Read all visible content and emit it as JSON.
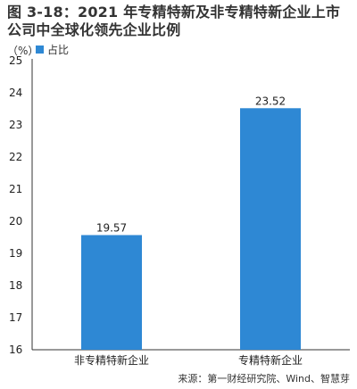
{
  "figure": {
    "title": "图 3-18：2021 年专精特新及非专精特新企业上市公司中全球化领先企业比例",
    "unit": "（%）",
    "source": "来源：第一财经研究院、Wind、智慧芽"
  },
  "colors": {
    "bar": "#2E88D4",
    "axis": "#333333",
    "text": "#222222"
  },
  "chart_data": {
    "type": "bar",
    "categories": [
      "非专精特新企业",
      "专精特新企业"
    ],
    "series": [
      {
        "name": "占比",
        "values": [
          19.57,
          23.52
        ]
      }
    ],
    "value_labels": [
      "19.57",
      "23.52"
    ],
    "ylim": [
      16,
      25
    ],
    "yticks": [
      16,
      17,
      18,
      19,
      20,
      21,
      22,
      23,
      24,
      25
    ],
    "grid": false,
    "legend_position": "top-left"
  }
}
